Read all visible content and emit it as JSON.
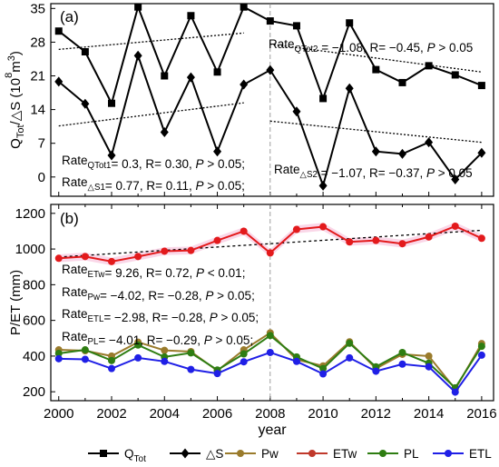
{
  "chart_data": [
    {
      "type": "line",
      "panel_label": "(a)",
      "ylabel_main": "Q",
      "ylabel_sub1": "Tot",
      "ylabel_mid": "/△S (10",
      "ylabel_sup": "8",
      "ylabel_end": "m",
      "ylabel_sup2": "3",
      "ylabel_close": ")",
      "ylim": [
        -4,
        36
      ],
      "yticks": [
        0,
        7,
        14,
        21,
        28,
        35
      ],
      "x": [
        2000,
        2001,
        2002,
        2003,
        2004,
        2005,
        2006,
        2007,
        2008,
        2009,
        2010,
        2011,
        2012,
        2013,
        2014,
        2015,
        2016
      ],
      "series": [
        {
          "name": "Q_Tot",
          "color": "#000000",
          "marker": "square",
          "values": [
            30.3,
            26.0,
            15.3,
            35.3,
            21.0,
            33.5,
            21.8,
            35.3,
            32.4,
            31.4,
            16.3,
            32.0,
            22.3,
            19.6,
            23.1,
            21.2,
            19.0
          ]
        },
        {
          "name": "△S",
          "color": "#000000",
          "marker": "diamond",
          "values": [
            19.8,
            15.2,
            4.5,
            25.2,
            9.3,
            20.7,
            5.3,
            19.2,
            22.2,
            13.6,
            -1.8,
            18.4,
            5.3,
            4.8,
            7.2,
            -0.5,
            5.0
          ]
        }
      ],
      "trendlines": [
        {
          "x": [
            2000,
            2007
          ],
          "y": [
            26.5,
            29.9
          ]
        },
        {
          "x": [
            2008,
            2016
          ],
          "y": [
            27.6,
            21.8
          ]
        },
        {
          "x": [
            2000,
            2007
          ],
          "y": [
            10.6,
            15.4
          ]
        },
        {
          "x": [
            2008,
            2016
          ],
          "y": [
            11.6,
            7.2
          ]
        }
      ],
      "annotations": [
        {
          "pre": "Rate",
          "sub": "QTot2",
          "post": " = −1.08,  R= −0.45, ",
          "p": "P",
          "tail": " > 0.05"
        },
        {
          "pre": "Rate",
          "sub": "QTot1",
          "post": "= 0.3,  R= 0.30, ",
          "p": "P",
          "tail": " > 0.05;"
        },
        {
          "pre": "Rate",
          "sub": "△S1",
          "post": "= 0.77,  R= 0.11, ",
          "p": "P",
          "tail": " > 0.05;"
        },
        {
          "pre": "Rate",
          "sub": "△S2",
          "post": " = −1.07,  R= −0.37, ",
          "p": "P",
          "tail": " > 0.05"
        }
      ]
    },
    {
      "type": "line",
      "panel_label": "(b)",
      "ylabel": "P/ET  (mm)",
      "xlabel": "year",
      "ylim": [
        150,
        1250
      ],
      "yticks": [
        200,
        400,
        600,
        800,
        1000,
        1200
      ],
      "xticks": [
        2000,
        2002,
        2004,
        2006,
        2008,
        2010,
        2012,
        2014,
        2016
      ],
      "x": [
        2000,
        2001,
        2002,
        2003,
        2004,
        2005,
        2006,
        2007,
        2008,
        2009,
        2010,
        2011,
        2012,
        2013,
        2014,
        2015,
        2016
      ],
      "series": [
        {
          "name": "Pw",
          "color": "#9a7b2c",
          "values": [
            435,
            430,
            400,
            478,
            432,
            425,
            318,
            435,
            530,
            380,
            345,
            480,
            330,
            410,
            400,
            215,
            470
          ]
        },
        {
          "name": "ETw",
          "color": "#e31a1c",
          "values": [
            948,
            958,
            930,
            958,
            988,
            992,
            1048,
            1100,
            978,
            1110,
            1125,
            1040,
            1048,
            1030,
            1068,
            1128,
            1060
          ]
        },
        {
          "name": "PL",
          "color": "#2e7d12",
          "values": [
            415,
            435,
            375,
            462,
            395,
            418,
            322,
            412,
            515,
            395,
            330,
            472,
            340,
            420,
            360,
            222,
            455
          ]
        },
        {
          "name": "ETL",
          "color": "#1f1fe6",
          "values": [
            385,
            382,
            330,
            390,
            370,
            325,
            302,
            368,
            420,
            370,
            300,
            390,
            315,
            355,
            340,
            198,
            405
          ]
        }
      ],
      "trendline": {
        "x": [
          2000,
          2016
        ],
        "y": [
          955,
          1105
        ]
      },
      "annotations": [
        {
          "pre": "Rate",
          "sub": "ETw",
          "post": "= 9.26,  R= 0.72, ",
          "p": "P",
          "tail": " < 0.01;"
        },
        {
          "pre": "Rate",
          "sub": "Pw",
          "post": "= −4.02,  R= −0.28, ",
          "p": "P",
          "tail": " > 0.05;"
        },
        {
          "pre": "Rate",
          "sub": "ETL",
          "post": "= −2.98,  R= −0.28, ",
          "p": "P",
          "tail": " > 0.05;"
        },
        {
          "pre": "Rate",
          "sub": "PL",
          "post": "= −4.01,  R= −0.29, ",
          "p": "P",
          "tail": " > 0.05;"
        }
      ]
    }
  ],
  "legend": [
    {
      "name": "Q",
      "sub": "Tot",
      "color": "#000000",
      "marker": "square"
    },
    {
      "name": "△S",
      "sub": "",
      "color": "#000000",
      "marker": "diamond"
    },
    {
      "name": "Pw",
      "sub": "",
      "color": "#9a7b2c",
      "marker": "circle"
    },
    {
      "name": "ETw",
      "sub": "",
      "color": "#c0392b",
      "marker": "circle"
    },
    {
      "name": "PL",
      "sub": "",
      "color": "#2e7d12",
      "marker": "circle"
    },
    {
      "name": "ETL",
      "sub": "",
      "color": "#1f1fe6",
      "marker": "circle"
    }
  ],
  "divider_year": 2008
}
